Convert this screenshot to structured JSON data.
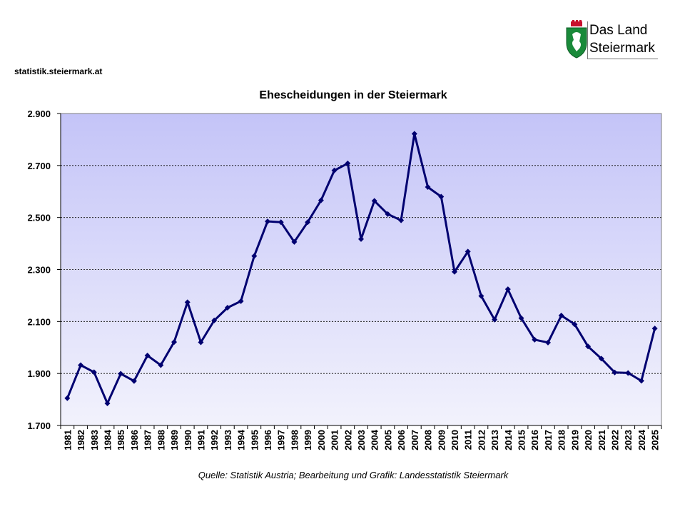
{
  "header": {
    "site": "statistik.steiermark.at",
    "logo_line1": "Das Land",
    "logo_line2": "Steiermark"
  },
  "footer": {
    "source": "Quelle: Statistik Austria; Bearbeitung und Grafik: Landesstatistik Steiermark"
  },
  "chart_data": {
    "type": "line",
    "title": "Ehescheidungen in der Steiermark",
    "xlabel": "",
    "ylabel": "",
    "ylim": [
      1700,
      2900
    ],
    "yticks": [
      1700,
      1900,
      2100,
      2300,
      2500,
      2700,
      2900
    ],
    "ytick_labels": [
      "1.700",
      "1.900",
      "2.100",
      "2.300",
      "2.500",
      "2.700",
      "2.900"
    ],
    "grid": true,
    "legend": "none",
    "line_color": "#000070",
    "categories": [
      "1981",
      "1982",
      "1983",
      "1984",
      "1985",
      "1986",
      "1987",
      "1988",
      "1989",
      "1990",
      "1991",
      "1992",
      "1993",
      "1994",
      "1995",
      "1996",
      "1997",
      "1998",
      "1999",
      "2000",
      "2001",
      "2002",
      "2003",
      "2004",
      "2005",
      "2006",
      "2007",
      "2008",
      "2009",
      "2010",
      "2011",
      "2012",
      "2013",
      "2014",
      "2015",
      "2016",
      "2017",
      "2018",
      "2019",
      "2020",
      "2021",
      "2022",
      "2023",
      "2024",
      "2025"
    ],
    "values": [
      1805,
      1932,
      1905,
      1785,
      1899,
      1871,
      1969,
      1932,
      2021,
      2174,
      2020,
      2104,
      2153,
      2178,
      2352,
      2485,
      2482,
      2406,
      2482,
      2566,
      2681,
      2708,
      2417,
      2564,
      2513,
      2489,
      2822,
      2617,
      2580,
      2291,
      2369,
      2198,
      2107,
      2224,
      2113,
      2030,
      2019,
      2123,
      2089,
      2004,
      1957,
      1904,
      1902,
      1872,
      2073
    ]
  }
}
